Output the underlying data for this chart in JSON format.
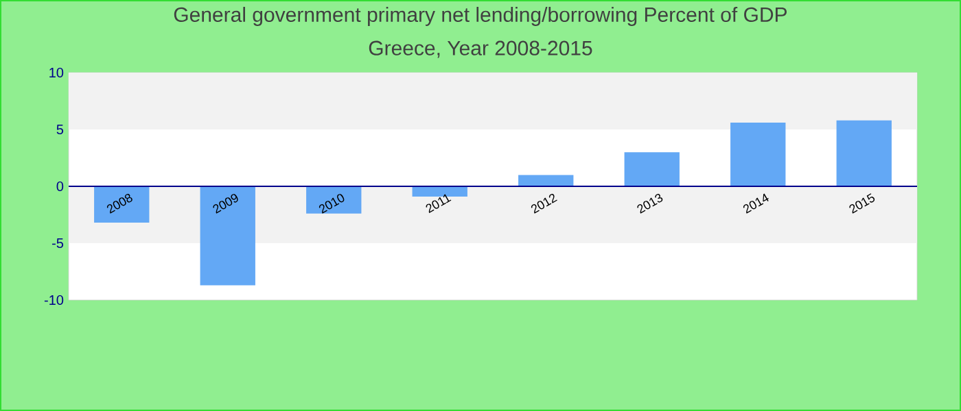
{
  "chart_data": {
    "type": "bar",
    "title": "General government primary net lending/borrowing  Percent of GDP",
    "subtitle": "Greece, Year 2008-2015",
    "categories": [
      "2008",
      "2009",
      "2010",
      "2011",
      "2012",
      "2013",
      "2014",
      "2015"
    ],
    "values": [
      -3.2,
      -8.7,
      -2.4,
      -0.9,
      1.0,
      3.0,
      5.6,
      5.8
    ],
    "color": "#63a8f5",
    "ylim": [
      -10,
      10
    ],
    "yticks": [
      -10,
      -5,
      0,
      5,
      10
    ],
    "bands": [
      {
        "axis": "y",
        "from": 5,
        "to": 10,
        "color": "#f2f2f2"
      },
      {
        "axis": "y",
        "from": -5,
        "to": 0,
        "color": "#f2f2f2"
      }
    ]
  }
}
